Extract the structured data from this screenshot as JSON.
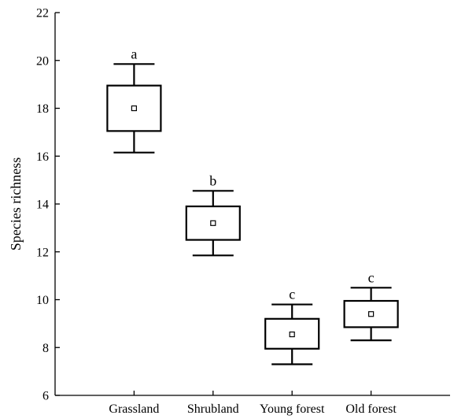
{
  "chart_data": {
    "type": "box",
    "title": "",
    "xlabel": "",
    "ylabel": "Species richness",
    "ylim": [
      6,
      22
    ],
    "yticks": [
      6,
      8,
      10,
      12,
      14,
      16,
      18,
      20,
      22
    ],
    "grid": false,
    "categories": [
      "Grassland",
      "Shrubland",
      "Young forest",
      "Old forest"
    ],
    "series": [
      {
        "category": "Grassland",
        "mean": 18.0,
        "box_low": 17.05,
        "box_high": 18.95,
        "whisker_low": 16.15,
        "whisker_high": 19.85,
        "letter": "a"
      },
      {
        "category": "Shrubland",
        "mean": 13.2,
        "box_low": 12.5,
        "box_high": 13.9,
        "whisker_low": 11.85,
        "whisker_high": 14.55,
        "letter": "b"
      },
      {
        "category": "Young forest",
        "mean": 8.55,
        "box_low": 7.95,
        "box_high": 9.2,
        "whisker_low": 7.3,
        "whisker_high": 9.8,
        "letter": "c"
      },
      {
        "category": "Old forest",
        "mean": 9.4,
        "box_low": 8.85,
        "box_high": 9.95,
        "whisker_low": 8.3,
        "whisker_high": 10.5,
        "letter": "c"
      }
    ]
  }
}
